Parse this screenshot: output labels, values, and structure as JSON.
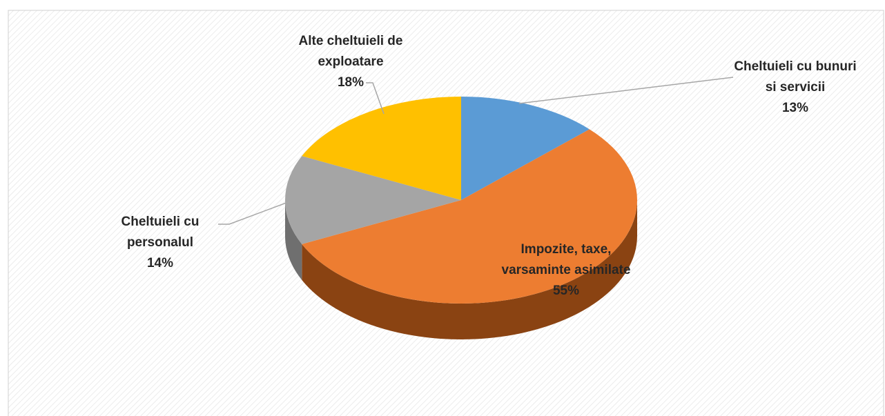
{
  "chart_data": {
    "type": "pie",
    "categories": [
      "Cheltuieli cu bunuri si servicii",
      "Impozite, taxe, varsaminte asimilate",
      "Cheltuieli cu personalul",
      "Alte cheltuieli de exploatare"
    ],
    "values": [
      13,
      55,
      14,
      18
    ],
    "value_labels": [
      "13%",
      "55%",
      "14%",
      "18%"
    ],
    "colors": [
      "#5b9bd5",
      "#ed7d31",
      "#a5a5a5",
      "#ffc000"
    ],
    "side_colors": [
      "#3f77aa",
      "#8a4312",
      "#6f6f6f",
      "#b58700"
    ]
  }
}
